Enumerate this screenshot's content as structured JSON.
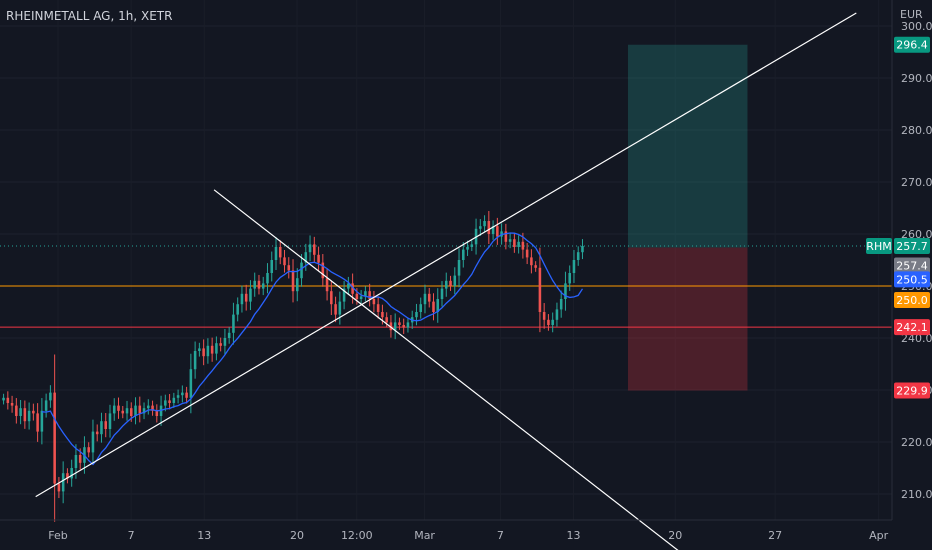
{
  "chart_data": {
    "type": "candlestick",
    "title": "RHEINMETALL AG, 1h, XETR",
    "currency": "EUR",
    "symbol": "RHM",
    "y_axis": {
      "min": 205,
      "max": 305,
      "ticks": [
        "210.0",
        "220.0",
        "230.0",
        "240.0",
        "250.0",
        "260.0",
        "270.0",
        "280.0",
        "290.0",
        "300.0"
      ]
    },
    "x_axis": {
      "ticks": [
        "Feb",
        "7",
        "13",
        "20",
        "12:00",
        "Mar",
        "7",
        "13",
        "20",
        "27",
        "Apr"
      ]
    },
    "colors": {
      "background": "#131722",
      "up": "#26a69a",
      "down": "#ef5350",
      "ma": "#2962ff",
      "support_orange": "#ff9800",
      "support_red": "#f23645",
      "trendline": "#ffffff",
      "target_zone": "#26a69a",
      "stop_zone": "#f23645"
    },
    "price_tags": [
      {
        "label": "296.4",
        "value": 296.4,
        "color": "#089981"
      },
      {
        "label": "257.7",
        "value": 257.7,
        "color": "#089981",
        "symbol": "RHM"
      },
      {
        "label": "257.4",
        "value": 257.4,
        "color": "#787b86"
      },
      {
        "label": "250.5",
        "value": 250.5,
        "color": "#2962ff"
      },
      {
        "label": "250.0",
        "value": 250.0,
        "color": "#ff9800"
      },
      {
        "label": "242.1",
        "value": 242.1,
        "color": "#f23645"
      },
      {
        "label": "229.9",
        "value": 229.9,
        "color": "#f23645"
      }
    ],
    "horizontal_lines": [
      {
        "value": 250.0,
        "color": "#ff9800",
        "style": "solid"
      },
      {
        "value": 242.1,
        "color": "#f23645",
        "style": "solid"
      },
      {
        "value": 257.7,
        "color": "#26a69a",
        "style": "dotted"
      }
    ],
    "position_box": {
      "entry": 257.4,
      "target": 296.4,
      "stop": 229.9
    },
    "trendlines": [
      {
        "from": [
          0.04,
          209.5
        ],
        "to": [
          0.96,
          302.5
        ]
      },
      {
        "from": [
          0.24,
          268.5
        ],
        "to": [
          0.765,
          198.5
        ]
      }
    ],
    "closes": [
      228.5,
      227.5,
      227.0,
      225.0,
      226.5,
      224.0,
      226.0,
      225.5,
      222.0,
      226.0,
      228.0,
      229.5,
      212.0,
      210.5,
      214.0,
      213.0,
      215.0,
      217.5,
      216.0,
      219.0,
      218.0,
      222.0,
      221.5,
      224.0,
      222.5,
      225.5,
      227.0,
      226.0,
      225.5,
      226.5,
      225.0,
      227.0,
      225.5,
      226.5,
      227.0,
      226.0,
      225.0,
      227.0,
      228.0,
      227.5,
      228.5,
      229.0,
      229.5,
      228.5,
      234.0,
      237.5,
      238.0,
      236.5,
      238.5,
      237.0,
      239.0,
      238.5,
      240.0,
      241.0,
      244.5,
      246.5,
      248.5,
      247.0,
      249.5,
      251.0,
      249.5,
      250.5,
      252.5,
      255.0,
      257.5,
      255.5,
      254.0,
      253.0,
      249.0,
      251.5,
      254.5,
      256.5,
      258.0,
      256.0,
      254.5,
      251.5,
      249.0,
      246.5,
      244.5,
      247.0,
      249.5,
      250.5,
      248.5,
      247.5,
      248.0,
      249.0,
      247.5,
      246.5,
      245.0,
      244.0,
      243.0,
      241.5,
      243.0,
      242.5,
      242.0,
      243.0,
      244.0,
      245.0,
      246.5,
      248.5,
      247.0,
      245.0,
      247.5,
      249.5,
      251.0,
      250.0,
      252.0,
      255.0,
      257.0,
      257.5,
      258.0,
      261.0,
      261.5,
      262.5,
      260.0,
      261.5,
      259.5,
      260.5,
      258.5,
      259.0,
      257.5,
      258.5,
      257.0,
      255.5,
      254.0,
      253.5,
      245.0,
      243.5,
      242.5,
      243.5,
      245.5,
      247.5,
      250.5,
      252.5,
      255.0,
      256.5,
      257.7
    ]
  }
}
